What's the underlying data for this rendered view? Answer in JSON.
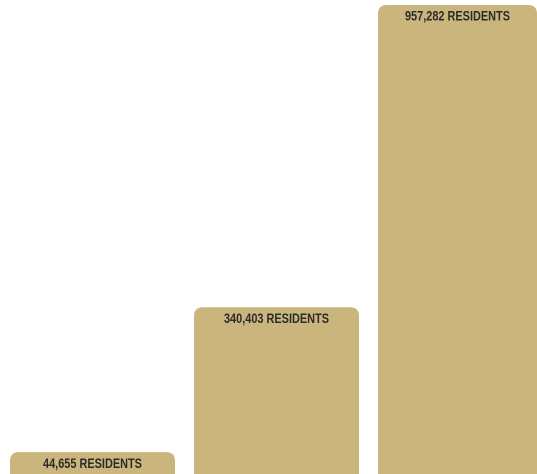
{
  "chart_data": {
    "type": "bar",
    "categories": [
      null,
      null,
      null
    ],
    "values": [
      44655,
      340403,
      957282
    ],
    "value_labels": [
      "44,655 RESIDENTS",
      "340,403 RESIDENTS",
      "957,282 RESIDENTS"
    ],
    "color": "#cab67c"
  }
}
